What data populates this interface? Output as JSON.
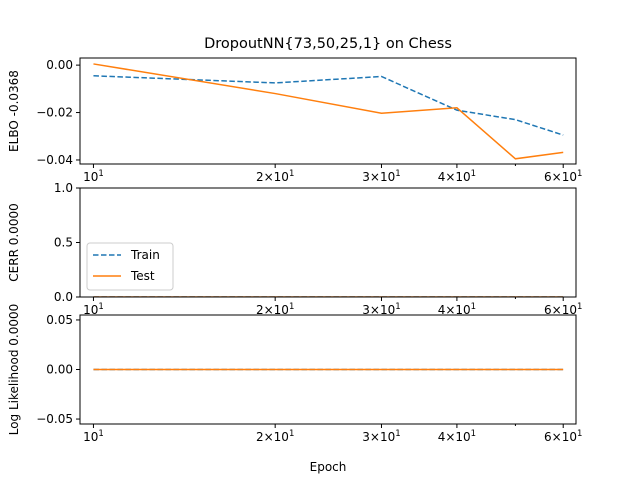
{
  "chart_data": {
    "title": "DropoutNN{73,50,25,1} on Chess",
    "type": "line",
    "x_scale": "log",
    "xlabel": "Epoch",
    "legend": {
      "placement": "lower-left",
      "panel": 1,
      "entries": [
        "Train",
        "Test"
      ]
    },
    "series_styles": [
      {
        "name": "Train",
        "color": "#1f77b4",
        "dash": "dashed"
      },
      {
        "name": "Test",
        "color": "#ff7f0e",
        "dash": "solid"
      }
    ],
    "x_tick_labels": [
      {
        "value": 10,
        "base": "10",
        "exp": "1",
        "mult": ""
      },
      {
        "value": 20,
        "base": "10",
        "exp": "1",
        "mult": "2×"
      },
      {
        "value": 30,
        "base": "10",
        "exp": "1",
        "mult": "3×"
      },
      {
        "value": 40,
        "base": "10",
        "exp": "1",
        "mult": "4×"
      },
      {
        "value": 60,
        "base": "10",
        "exp": "1",
        "mult": "6×"
      }
    ],
    "x_minor_ticks": [
      50
    ],
    "xlim": [
      9.5,
      63
    ],
    "panels": [
      {
        "ylabel": "ELBO -0.0368",
        "ylim": [
          -0.0417,
          0.003
        ],
        "y_ticks": [
          0.0,
          -0.02,
          -0.04
        ],
        "y_tick_labels": [
          "0.00",
          "−0.02",
          "−0.04"
        ],
        "series": [
          {
            "name": "Train",
            "x": [
              10,
              20,
              30,
              40,
              50,
              60
            ],
            "y": [
              -0.0045,
              -0.0075,
              -0.0048,
              -0.019,
              -0.023,
              -0.0295
            ]
          },
          {
            "name": "Test",
            "x": [
              10,
              20,
              30,
              40,
              50,
              60
            ],
            "y": [
              0.0005,
              -0.012,
              -0.0203,
              -0.018,
              -0.0395,
              -0.0368
            ]
          }
        ]
      },
      {
        "ylabel": "CERR 0.0000",
        "ylim": [
          0,
          1
        ],
        "y_ticks": [
          0,
          0.5,
          1.0
        ],
        "y_tick_labels": [
          "0.0",
          "0.5",
          "1.0"
        ],
        "series": [
          {
            "name": "Train",
            "x": [
              10,
              20,
              30,
              40,
              50,
              60
            ],
            "y": [
              0,
              0,
              0,
              0,
              0,
              0
            ]
          },
          {
            "name": "Test",
            "x": [
              10,
              20,
              30,
              40,
              50,
              60
            ],
            "y": [
              0,
              0,
              0,
              0,
              0,
              0
            ]
          }
        ]
      },
      {
        "ylabel": "Log Likelihood 0.0000",
        "ylim": [
          -0.055,
          0.055
        ],
        "y_ticks": [
          0.05,
          0.0,
          -0.05
        ],
        "y_tick_labels": [
          "0.05",
          "0.00",
          "−0.05"
        ],
        "series": [
          {
            "name": "Train",
            "x": [
              10,
              20,
              30,
              40,
              50,
              60
            ],
            "y": [
              0,
              0,
              0,
              0,
              0,
              0
            ]
          },
          {
            "name": "Test",
            "x": [
              10,
              20,
              30,
              40,
              50,
              60
            ],
            "y": [
              0,
              0,
              0,
              0,
              0,
              0
            ]
          }
        ]
      }
    ]
  }
}
